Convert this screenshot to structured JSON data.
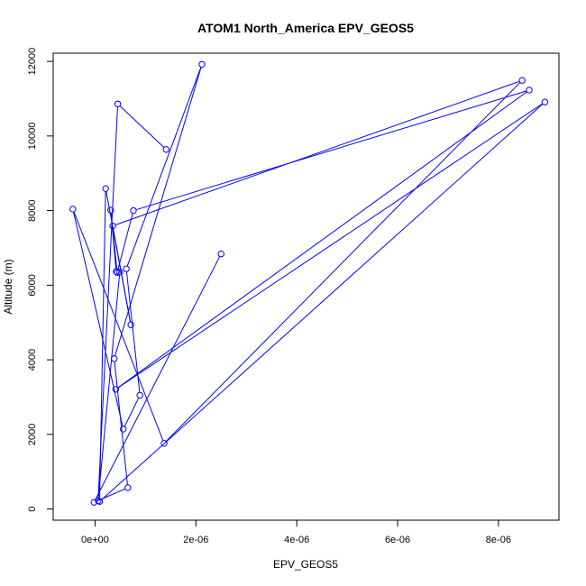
{
  "chart_data": {
    "type": "scatter",
    "title": "ATOM1 North_America EPV_GEOS5",
    "xlabel": "EPV_GEOS5",
    "ylabel": "Altitude (m)",
    "xlim": [
      -8.3e-07,
      9.2e-06
    ],
    "ylim": [
      -300,
      12220
    ],
    "x_ticks": [
      0,
      2e-06,
      4e-06,
      6e-06,
      8e-06
    ],
    "x_tick_labels": [
      "0e+00",
      "2e-06",
      "4e-06",
      "6e-06",
      "8e-06"
    ],
    "y_ticks": [
      0,
      2000,
      4000,
      6000,
      8000,
      10000,
      12000
    ],
    "y_tick_labels": [
      "0",
      "2000",
      "4000",
      "6000",
      "8000",
      "10000",
      "12000"
    ],
    "series": [
      {
        "color": "#0000ff",
        "marker": "open-circle",
        "connected": true,
        "x": [
          2.5e-06,
          -2e-08,
          6.5e-07,
          3.8e-07,
          2.12e-06,
          6.2e-07,
          8.9e-07,
          5.6e-07,
          -4.4e-07,
          1.37e-06,
          8.47e-06,
          3.5e-07,
          7.1e-07,
          2.1e-07,
          9e-08,
          8.92e-06,
          4.1e-07,
          8.61e-06,
          7.6e-07,
          4.4e-07,
          3.1e-07,
          4.2e-07,
          4.9e-07,
          6e-08,
          4.5e-07,
          1.41e-06
        ],
        "y": [
          6840,
          180,
          570,
          4030,
          11920,
          6440,
          3050,
          2140,
          8040,
          1760,
          11490,
          7590,
          4940,
          8590,
          200,
          10910,
          3210,
          11230,
          8000,
          6340,
          8010,
          6370,
          6350,
          220,
          10860,
          9640
        ]
      }
    ]
  }
}
